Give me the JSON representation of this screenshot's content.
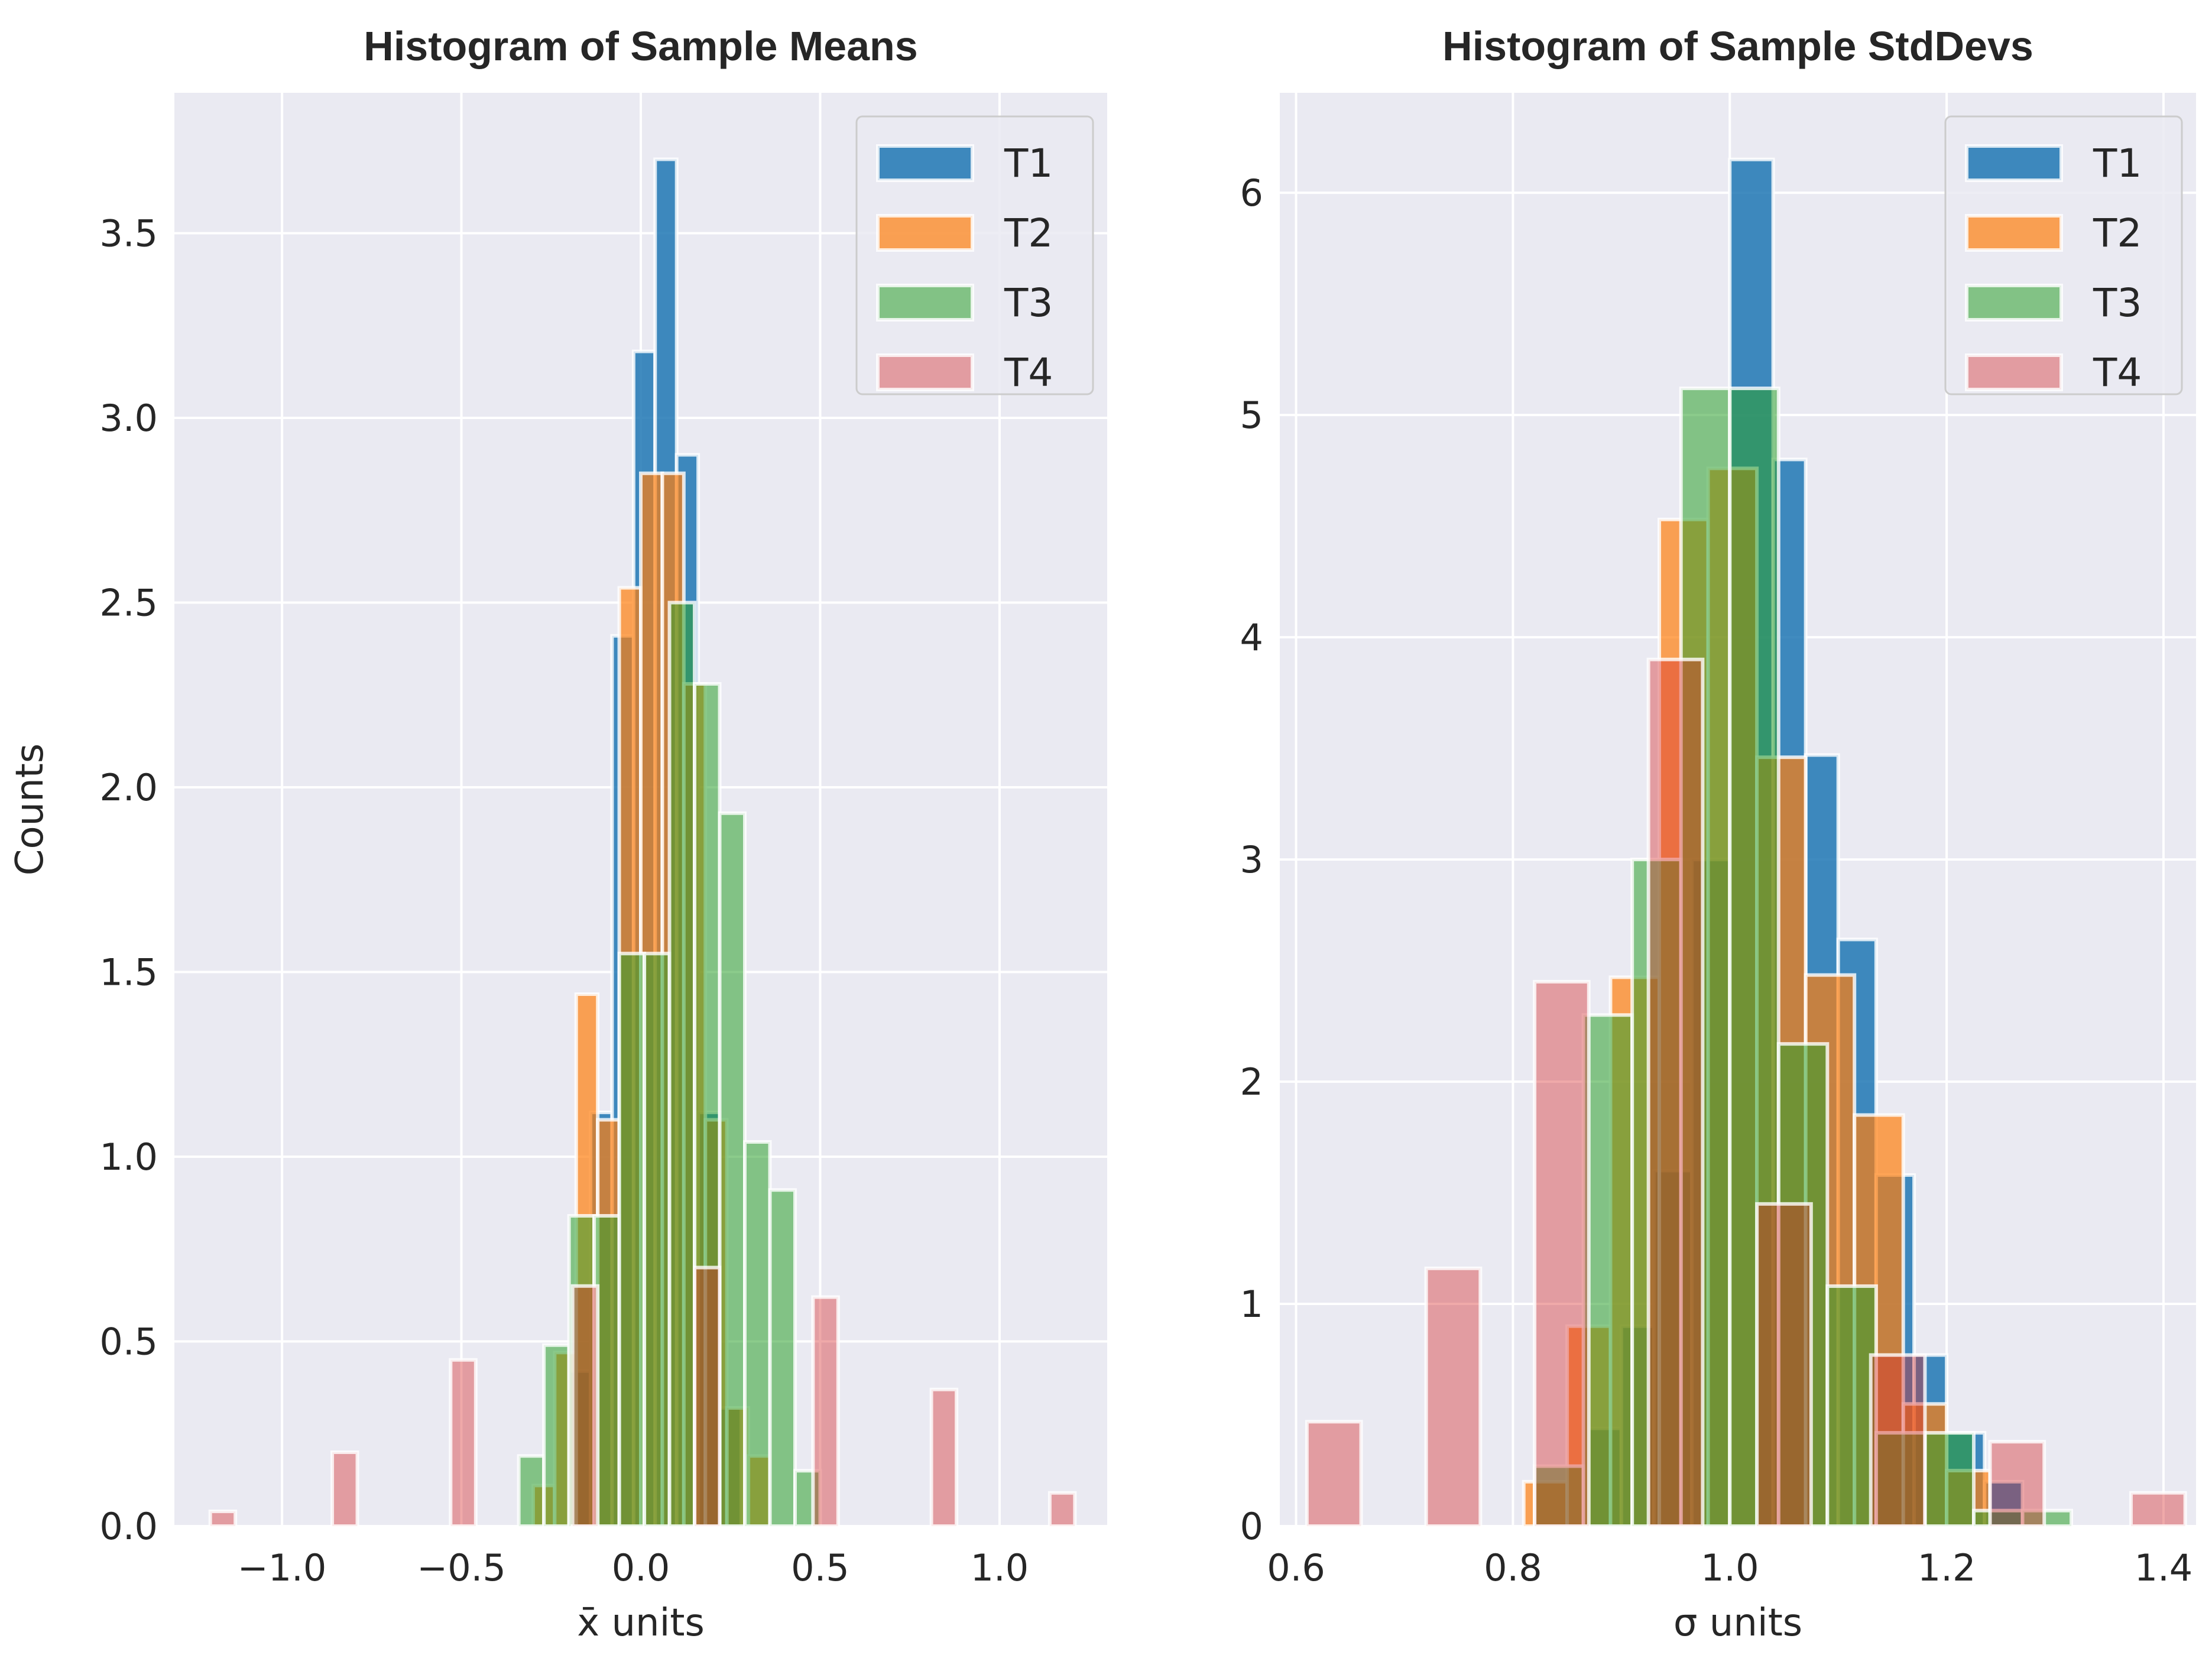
{
  "colors": {
    "background": "#eaeaf2",
    "grid": "#ffffff",
    "T1": "#1f77b4",
    "T2": "#ff7f0e",
    "T3": "#2ca02c",
    "T4": "#d62728"
  },
  "chart_data": [
    {
      "type": "histogram",
      "title": "Histogram of Sample Means",
      "xlabel": "x̄ units",
      "ylabel": "Counts",
      "xlim": [
        -1.3,
        1.3
      ],
      "ylim": [
        0,
        3.88
      ],
      "xticks": [
        -1.0,
        -0.5,
        0.0,
        0.5,
        1.0
      ],
      "xtick_labels": [
        "−1.0",
        "−0.5",
        "0.0",
        "0.5",
        "1.0"
      ],
      "yticks": [
        0.0,
        0.5,
        1.0,
        1.5,
        2.0,
        2.5,
        3.0,
        3.5
      ],
      "ytick_labels": [
        "0.0",
        "0.5",
        "1.0",
        "1.5",
        "2.0",
        "2.5",
        "3.0",
        "3.5"
      ],
      "grid": true,
      "legend_position": "top-right",
      "series": [
        {
          "name": "T1",
          "alpha": 0.85,
          "bins": [
            {
              "x0": -0.2,
              "x1": -0.14,
              "y": 0.42
            },
            {
              "x0": -0.14,
              "x1": -0.08,
              "y": 1.12
            },
            {
              "x0": -0.08,
              "x1": -0.02,
              "y": 2.41
            },
            {
              "x0": -0.02,
              "x1": 0.04,
              "y": 3.18
            },
            {
              "x0": 0.04,
              "x1": 0.1,
              "y": 3.7
            },
            {
              "x0": 0.1,
              "x1": 0.16,
              "y": 2.9
            },
            {
              "x0": 0.16,
              "x1": 0.22,
              "y": 1.12
            },
            {
              "x0": 0.22,
              "x1": 0.28,
              "y": 0.32
            }
          ]
        },
        {
          "name": "T2",
          "alpha": 0.7,
          "bins": [
            {
              "x0": -0.3,
              "x1": -0.24,
              "y": 0.11
            },
            {
              "x0": -0.24,
              "x1": -0.18,
              "y": 0.47
            },
            {
              "x0": -0.18,
              "x1": -0.12,
              "y": 1.44
            },
            {
              "x0": -0.12,
              "x1": -0.06,
              "y": 1.1
            },
            {
              "x0": -0.06,
              "x1": 0.0,
              "y": 2.54
            },
            {
              "x0": 0.0,
              "x1": 0.06,
              "y": 2.85
            },
            {
              "x0": 0.06,
              "x1": 0.12,
              "y": 2.85
            },
            {
              "x0": 0.12,
              "x1": 0.18,
              "y": 2.28
            },
            {
              "x0": 0.18,
              "x1": 0.24,
              "y": 1.1
            },
            {
              "x0": 0.24,
              "x1": 0.3,
              "y": 0.32
            },
            {
              "x0": 0.3,
              "x1": 0.36,
              "y": 0.19
            }
          ]
        },
        {
          "name": "T3",
          "alpha": 0.55,
          "bins": [
            {
              "x0": -0.34,
              "x1": -0.27,
              "y": 0.19
            },
            {
              "x0": -0.27,
              "x1": -0.2,
              "y": 0.49
            },
            {
              "x0": -0.2,
              "x1": -0.13,
              "y": 0.84
            },
            {
              "x0": -0.13,
              "x1": -0.06,
              "y": 0.84
            },
            {
              "x0": -0.06,
              "x1": 0.01,
              "y": 1.55
            },
            {
              "x0": 0.01,
              "x1": 0.08,
              "y": 1.55
            },
            {
              "x0": 0.08,
              "x1": 0.15,
              "y": 2.5
            },
            {
              "x0": 0.15,
              "x1": 0.22,
              "y": 2.28
            },
            {
              "x0": 0.22,
              "x1": 0.29,
              "y": 1.93
            },
            {
              "x0": 0.29,
              "x1": 0.36,
              "y": 1.04
            },
            {
              "x0": 0.36,
              "x1": 0.43,
              "y": 0.91
            },
            {
              "x0": 0.43,
              "x1": 0.5,
              "y": 0.15
            }
          ]
        },
        {
          "name": "T4",
          "alpha": 0.4,
          "bins": [
            {
              "x0": -1.2,
              "x1": -1.13,
              "y": 0.04
            },
            {
              "x0": -0.86,
              "x1": -0.79,
              "y": 0.2
            },
            {
              "x0": -0.53,
              "x1": -0.46,
              "y": 0.45
            },
            {
              "x0": -0.19,
              "x1": -0.12,
              "y": 0.65
            },
            {
              "x0": 0.15,
              "x1": 0.22,
              "y": 0.7
            },
            {
              "x0": 0.48,
              "x1": 0.55,
              "y": 0.62
            },
            {
              "x0": 0.81,
              "x1": 0.88,
              "y": 0.37
            },
            {
              "x0": 1.14,
              "x1": 1.21,
              "y": 0.09
            }
          ]
        }
      ]
    },
    {
      "type": "histogram",
      "title": "Histogram of Sample StdDevs",
      "xlabel": "σ units",
      "ylabel": "",
      "xlim": [
        0.585,
        1.43
      ],
      "ylim": [
        0,
        6.45
      ],
      "xticks": [
        0.6,
        0.8,
        1.0,
        1.2,
        1.4
      ],
      "xtick_labels": [
        "0.6",
        "0.8",
        "1.0",
        "1.2",
        "1.4"
      ],
      "yticks": [
        0,
        1,
        2,
        3,
        4,
        5,
        6
      ],
      "ytick_labels": [
        "0",
        "1",
        "2",
        "3",
        "4",
        "5",
        "6"
      ],
      "grid": true,
      "legend_position": "top-right",
      "series": [
        {
          "name": "T1",
          "alpha": 0.85,
          "bins": [
            {
              "x0": 0.87,
              "x1": 0.9,
              "y": 0.44
            },
            {
              "x0": 0.9,
              "x1": 0.93,
              "y": 0.9
            },
            {
              "x0": 0.93,
              "x1": 0.965,
              "y": 1.6
            },
            {
              "x0": 0.965,
              "x1": 1.0,
              "y": 3.0
            },
            {
              "x0": 1.0,
              "x1": 1.04,
              "y": 6.15
            },
            {
              "x0": 1.04,
              "x1": 1.07,
              "y": 4.8
            },
            {
              "x0": 1.07,
              "x1": 1.1,
              "y": 3.47
            },
            {
              "x0": 1.1,
              "x1": 1.135,
              "y": 2.64
            },
            {
              "x0": 1.135,
              "x1": 1.17,
              "y": 1.58
            },
            {
              "x0": 1.17,
              "x1": 1.2,
              "y": 0.77
            },
            {
              "x0": 1.2,
              "x1": 1.235,
              "y": 0.42
            },
            {
              "x0": 1.235,
              "x1": 1.27,
              "y": 0.2
            }
          ]
        },
        {
          "name": "T2",
          "alpha": 0.7,
          "bins": [
            {
              "x0": 0.81,
              "x1": 0.85,
              "y": 0.2
            },
            {
              "x0": 0.85,
              "x1": 0.89,
              "y": 0.9
            },
            {
              "x0": 0.89,
              "x1": 0.935,
              "y": 2.47
            },
            {
              "x0": 0.935,
              "x1": 0.98,
              "y": 4.53
            },
            {
              "x0": 0.98,
              "x1": 1.025,
              "y": 4.76
            },
            {
              "x0": 1.025,
              "x1": 1.07,
              "y": 3.46
            },
            {
              "x0": 1.07,
              "x1": 1.115,
              "y": 2.48
            },
            {
              "x0": 1.115,
              "x1": 1.16,
              "y": 1.85
            },
            {
              "x0": 1.16,
              "x1": 1.2,
              "y": 0.55
            },
            {
              "x0": 1.2,
              "x1": 1.24,
              "y": 0.25
            }
          ]
        },
        {
          "name": "T3",
          "alpha": 0.55,
          "bins": [
            {
              "x0": 0.82,
              "x1": 0.865,
              "y": 0.27
            },
            {
              "x0": 0.865,
              "x1": 0.91,
              "y": 2.3
            },
            {
              "x0": 0.91,
              "x1": 0.955,
              "y": 3.0
            },
            {
              "x0": 0.955,
              "x1": 1.0,
              "y": 5.12
            },
            {
              "x0": 1.0,
              "x1": 1.045,
              "y": 5.12
            },
            {
              "x0": 1.045,
              "x1": 1.09,
              "y": 2.17
            },
            {
              "x0": 1.09,
              "x1": 1.135,
              "y": 1.08
            },
            {
              "x0": 1.135,
              "x1": 1.18,
              "y": 0.42
            },
            {
              "x0": 1.18,
              "x1": 1.225,
              "y": 0.42
            },
            {
              "x0": 1.225,
              "x1": 1.27,
              "y": 0.07
            },
            {
              "x0": 1.27,
              "x1": 1.315,
              "y": 0.07
            }
          ]
        },
        {
          "name": "T4",
          "alpha": 0.4,
          "bins": [
            {
              "x0": 0.61,
              "x1": 0.66,
              "y": 0.47
            },
            {
              "x0": 0.72,
              "x1": 0.77,
              "y": 1.16
            },
            {
              "x0": 0.82,
              "x1": 0.87,
              "y": 2.45
            },
            {
              "x0": 0.925,
              "x1": 0.975,
              "y": 3.9
            },
            {
              "x0": 1.025,
              "x1": 1.075,
              "y": 1.45
            },
            {
              "x0": 1.13,
              "x1": 1.18,
              "y": 0.77
            },
            {
              "x0": 1.24,
              "x1": 1.29,
              "y": 0.38
            },
            {
              "x0": 1.37,
              "x1": 1.42,
              "y": 0.15
            }
          ]
        }
      ]
    }
  ]
}
